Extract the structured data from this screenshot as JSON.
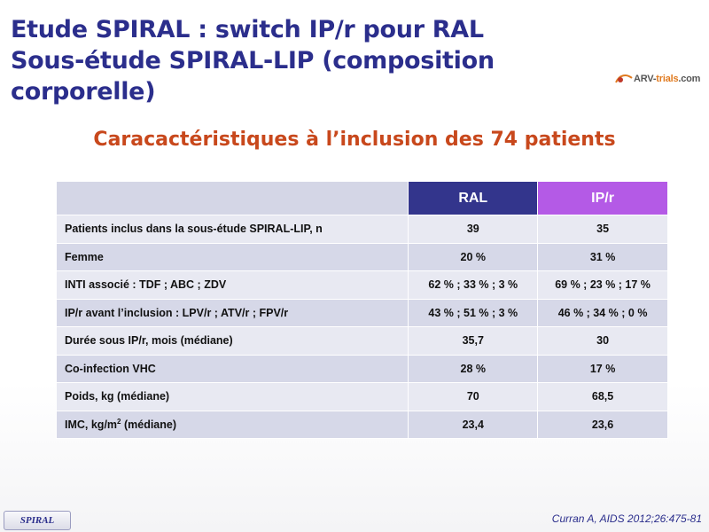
{
  "title": {
    "line1": "Etude SPIRAL : switch IP/r pour RAL",
    "line2": "Sous-étude SPIRAL-LIP (composition corporelle)"
  },
  "logo": {
    "prefix": "ARV-",
    "name": "trials",
    "suffix": ".com"
  },
  "subtitle": "Caracactéristiques à l’inclusion des 74 patients",
  "table": {
    "headers": {
      "corner": "",
      "ral": "RAL",
      "ipr": "IP/r"
    },
    "rows": [
      {
        "label": "Patients inclus dans la sous-étude SPIRAL-LIP, n",
        "ral": "39",
        "ipr": "35"
      },
      {
        "label": "Femme",
        "ral": "20 %",
        "ipr": "31 %"
      },
      {
        "label": "INTI associé : TDF ; ABC ; ZDV",
        "ral": "62 % ; 33 % ; 3 %",
        "ipr": "69 % ; 23 % ; 17 %"
      },
      {
        "label": "IP/r avant l’inclusion : LPV/r ; ATV/r ; FPV/r",
        "ral": "43 % ; 51 % ; 3 %",
        "ipr": "46 % ; 34 % ; 0 %"
      },
      {
        "label": "Durée sous IP/r, mois (médiane)",
        "ral": "35,7",
        "ipr": "30"
      },
      {
        "label": "Co-infection VHC",
        "ral": "28 %",
        "ipr": "17 %"
      },
      {
        "label": "Poids, kg (médiane)",
        "ral": "70",
        "ipr": "68,5"
      },
      {
        "label_main": "IMC, kg/m",
        "label_sup": "2",
        "label_tail": " (médiane)",
        "ral": "23,4",
        "ipr": "23,6"
      }
    ]
  },
  "footer": {
    "tag": "SPIRAL",
    "citation": "Curran A, AIDS 2012;26:475-81"
  },
  "colors": {
    "title": "#2b2e8c",
    "subtitle": "#c8481c",
    "ral_header": "#33358c",
    "ipr_header": "#b45ae6",
    "row_light": "#e8e9f2",
    "row_dark": "#d6d8e8"
  }
}
